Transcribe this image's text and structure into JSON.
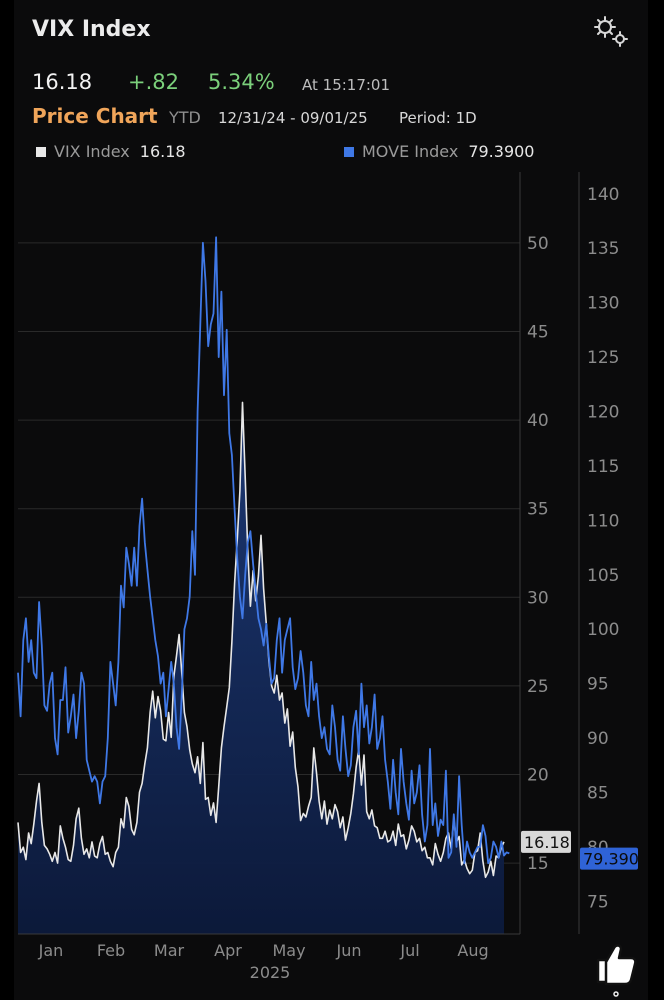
{
  "header": {
    "title": "VIX Index",
    "last": "16.18",
    "change": "+.82",
    "change_pct": "5.34%",
    "time": "At 15:17:01",
    "subtitle": "Price Chart",
    "mode": "YTD",
    "range": "12/31/24 - 09/01/25",
    "period": "Period: 1D"
  },
  "legend": [
    {
      "name": "VIX Index",
      "value": "16.18",
      "color": "#e8e8e8"
    },
    {
      "name": "MOVE Index",
      "value": "79.3900",
      "color": "#3f78e6"
    }
  ],
  "icons": [
    "gear-icon",
    "thumbs-up-icon"
  ],
  "chart_data": {
    "type": "line",
    "x_axis": {
      "ticks": [
        "Jan",
        "Feb",
        "Mar",
        "Apr",
        "May",
        "Jun",
        "Jul",
        "Aug"
      ],
      "year": "2025"
    },
    "y_left": {
      "ticks": [
        15,
        20,
        25,
        30,
        35,
        40,
        45,
        50
      ],
      "range": [
        11,
        54
      ],
      "last_label": "16.18"
    },
    "y_right": {
      "ticks": [
        75,
        80,
        85,
        90,
        95,
        100,
        105,
        110,
        115,
        120,
        125,
        130,
        135,
        140
      ],
      "range": [
        72,
        142
      ],
      "last_label": "79.390"
    },
    "grid": true,
    "series": [
      {
        "name": "VIX Index",
        "axis": "left",
        "color": "#e8e8e8",
        "fill": true,
        "values": [
          17.3,
          15.6,
          15.9,
          15.2,
          16.7,
          16.1,
          17.2,
          18.5,
          19.5,
          17.3,
          16.0,
          15.8,
          15.5,
          15.1,
          15.6,
          15.0,
          17.1,
          16.4,
          15.9,
          15.2,
          15.1,
          16.0,
          17.5,
          18.1,
          16.4,
          15.5,
          15.8,
          15.3,
          16.2,
          15.4,
          15.3,
          16.1,
          16.5,
          15.5,
          15.6,
          15.1,
          14.8,
          15.6,
          15.9,
          17.5,
          17.0,
          18.7,
          18.2,
          16.9,
          16.6,
          17.3,
          19.0,
          19.5,
          20.6,
          21.5,
          23.5,
          24.7,
          23.2,
          24.4,
          23.6,
          22.0,
          21.9,
          23.5,
          22.1,
          25.5,
          26.7,
          27.9,
          25.7,
          23.5,
          22.7,
          21.4,
          20.6,
          20.1,
          21.0,
          19.5,
          21.8,
          18.6,
          18.7,
          17.7,
          18.4,
          17.3,
          19.3,
          21.5,
          22.7,
          23.8,
          24.9,
          27.5,
          30.8,
          33.2,
          36.0,
          41.0,
          36.8,
          32.6,
          29.5,
          31.5,
          29.8,
          31.2,
          33.5,
          30.5,
          28.5,
          26.4,
          25.0,
          24.6,
          25.6,
          24.2,
          24.6,
          22.9,
          23.7,
          21.6,
          22.4,
          20.4,
          19.3,
          17.4,
          17.8,
          17.6,
          18.2,
          18.7,
          21.5,
          20.1,
          18.5,
          17.5,
          18.5,
          17.2,
          18.0,
          17.5,
          18.3,
          17.9,
          17.0,
          17.6,
          16.3,
          17.0,
          17.8,
          18.9,
          20.4,
          21.4,
          19.4,
          21.1,
          17.9,
          17.5,
          18.0,
          17.1,
          17.0,
          16.4,
          16.4,
          16.8,
          16.2,
          16.3,
          16.8,
          16.0,
          17.2,
          16.5,
          16.6,
          15.8,
          16.3,
          17.1,
          16.8,
          16.2,
          16.4,
          15.7,
          15.9,
          15.3,
          15.3,
          14.9,
          16.1,
          15.5,
          15.1,
          15.6,
          16.4,
          16.7,
          15.8,
          17.5,
          16.2,
          16.5,
          14.9,
          15.2,
          14.7,
          14.4,
          14.6,
          15.6,
          15.7,
          16.7,
          15.1,
          14.2,
          14.5,
          15.1,
          14.3,
          15.4,
          15.3,
          15.9,
          16.2
        ]
      },
      {
        "name": "MOVE Index",
        "axis": "right",
        "color": "#3f78e6",
        "fill": false,
        "values": [
          96.0,
          92.0,
          99.0,
          101.0,
          97.0,
          99.0,
          96.0,
          95.5,
          102.5,
          98.5,
          93.0,
          92.5,
          95.0,
          96.0,
          90.0,
          88.5,
          93.5,
          93.5,
          96.5,
          90.5,
          92.0,
          94.0,
          90.0,
          92.5,
          96.0,
          95.0,
          88.0,
          87.0,
          86.0,
          86.5,
          86.0,
          84.0,
          86.0,
          86.5,
          90.0,
          97.0,
          95.0,
          93.0,
          97.0,
          104.0,
          102.0,
          107.5,
          106.0,
          104.0,
          107.5,
          104.0,
          109.5,
          112.0,
          108.0,
          105.5,
          103.0,
          101.0,
          99.0,
          97.5,
          95.0,
          96.0,
          92.0,
          94.5,
          97.0,
          95.0,
          91.0,
          89.0,
          94.0,
          100.0,
          101.0,
          103.0,
          109.0,
          105.0,
          120.0,
          128.0,
          135.5,
          132.0,
          126.0,
          128.0,
          129.0,
          136.0,
          125.0,
          131.0,
          121.5,
          127.5,
          118.0,
          116.0,
          111.0,
          106.5,
          103.0,
          101.0,
          105.0,
          108.0,
          109.0,
          106.0,
          103.5,
          101.0,
          100.0,
          98.5,
          100.5,
          97.5,
          95.0,
          95.5,
          99.0,
          101.0,
          96.0,
          99.0,
          100.0,
          101.0,
          96.5,
          94.5,
          95.5,
          98.0,
          96.0,
          93.0,
          92.0,
          97.0,
          93.5,
          95.0,
          92.0,
          90.0,
          91.0,
          89.0,
          88.5,
          93.0,
          91.0,
          88.0,
          87.0,
          92.0,
          89.0,
          86.5,
          87.5,
          91.0,
          92.5,
          88.5,
          95.0,
          91.0,
          93.0,
          89.5,
          91.0,
          94.0,
          89.0,
          90.0,
          92.0,
          88.0,
          86.0,
          83.5,
          88.0,
          85.0,
          83.0,
          89.0,
          86.0,
          84.0,
          82.5,
          87.0,
          84.0,
          85.0,
          87.5,
          83.0,
          80.5,
          82.0,
          89.0,
          82.0,
          84.0,
          81.0,
          82.5,
          82.0,
          87.0,
          79.0,
          79.5,
          83.0,
          80.0,
          86.5,
          82.0,
          78.5,
          80.5,
          79.5,
          79.0,
          79.5,
          80.0,
          80.0,
          82.0,
          81.0,
          78.5,
          79.0,
          80.5,
          80.0,
          79.0,
          80.5,
          79.2,
          79.5,
          79.4
        ]
      }
    ]
  }
}
